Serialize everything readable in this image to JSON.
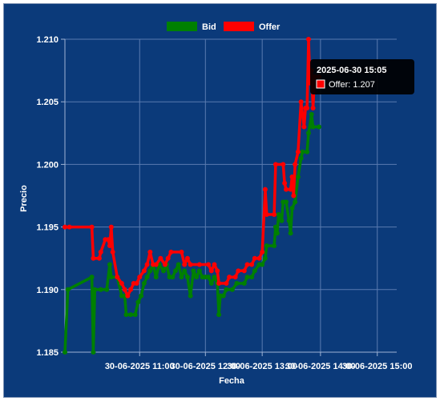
{
  "chart_data": {
    "type": "line",
    "title": "",
    "xlabel": "Fecha",
    "ylabel": "Precio",
    "ylim": [
      1.185,
      1.21
    ],
    "y_ticks": [
      "1.185",
      "1.190",
      "1.195",
      "1.200",
      "1.205",
      "1.210"
    ],
    "x_ticks": [
      "30-06-2025 11:00",
      "30-06-2025 12:00",
      "30-06-2025 13:00",
      "30-06-2025 14:00",
      "30-06-2025 15:00"
    ],
    "x_tick_times": [
      "10:50",
      "11:34",
      "12:12",
      "12:51",
      "13:29"
    ],
    "xlim": [
      "10:00",
      "13:42"
    ],
    "grid": true,
    "legend_position": "top",
    "series": [
      {
        "name": "Bid",
        "color": "#008000",
        "points": [
          [
            "10:00",
            1.185
          ],
          [
            "10:02",
            1.19
          ],
          [
            "10:18",
            1.191
          ],
          [
            "10:19",
            1.185
          ],
          [
            "10:20",
            1.19
          ],
          [
            "10:24",
            1.19
          ],
          [
            "10:28",
            1.19
          ],
          [
            "10:30",
            1.192
          ],
          [
            "10:31",
            1.191
          ],
          [
            "10:35",
            1.191
          ],
          [
            "10:38",
            1.1895
          ],
          [
            "10:40",
            1.1895
          ],
          [
            "10:41",
            1.188
          ],
          [
            "10:44",
            1.188
          ],
          [
            "10:47",
            1.188
          ],
          [
            "10:49",
            1.189
          ],
          [
            "10:51",
            1.1895
          ],
          [
            "10:53",
            1.1905
          ],
          [
            "10:55",
            1.191
          ],
          [
            "10:57",
            1.1915
          ],
          [
            "10:59",
            1.192
          ],
          [
            "11:01",
            1.191
          ],
          [
            "11:03",
            1.192
          ],
          [
            "11:06",
            1.1915
          ],
          [
            "11:08",
            1.192
          ],
          [
            "11:10",
            1.191
          ],
          [
            "11:12",
            1.191
          ],
          [
            "11:14",
            1.1915
          ],
          [
            "11:16",
            1.192
          ],
          [
            "11:18",
            1.191
          ],
          [
            "11:20",
            1.1915
          ],
          [
            "11:22",
            1.191
          ],
          [
            "11:24",
            1.1895
          ],
          [
            "11:26",
            1.1915
          ],
          [
            "11:28",
            1.191
          ],
          [
            "11:30",
            1.1915
          ],
          [
            "11:32",
            1.191
          ],
          [
            "11:34",
            1.191
          ],
          [
            "11:36",
            1.191
          ],
          [
            "11:38",
            1.1905
          ],
          [
            "11:40",
            1.191
          ],
          [
            "11:42",
            1.1905
          ],
          [
            "11:43",
            1.188
          ],
          [
            "11:44",
            1.1895
          ],
          [
            "11:46",
            1.1895
          ],
          [
            "11:48",
            1.19
          ],
          [
            "11:52",
            1.19
          ],
          [
            "11:55",
            1.1905
          ],
          [
            "12:00",
            1.1905
          ],
          [
            "12:02",
            1.191
          ],
          [
            "12:05",
            1.191
          ],
          [
            "12:07",
            1.1915
          ],
          [
            "12:10",
            1.192
          ],
          [
            "12:12",
            1.192
          ],
          [
            "12:14",
            1.1925
          ],
          [
            "12:15",
            1.1935
          ],
          [
            "12:20",
            1.1935
          ],
          [
            "12:21",
            1.195
          ],
          [
            "12:22",
            1.1945
          ],
          [
            "12:23",
            1.196
          ],
          [
            "12:25",
            1.1955
          ],
          [
            "12:26",
            1.197
          ],
          [
            "12:28",
            1.197
          ],
          [
            "12:30",
            1.1955
          ],
          [
            "12:31",
            1.1945
          ],
          [
            "12:32",
            1.1965
          ],
          [
            "12:34",
            1.197
          ],
          [
            "12:36",
            1.199
          ],
          [
            "12:38",
            1.2005
          ],
          [
            "12:39",
            1.201
          ],
          [
            "12:42",
            1.201
          ],
          [
            "12:43",
            1.2025
          ],
          [
            "12:45",
            1.204
          ],
          [
            "12:46",
            1.203
          ],
          [
            "12:50",
            1.203
          ]
        ]
      },
      {
        "name": "Offer",
        "color": "#ff0000",
        "points": [
          [
            "10:00",
            1.195
          ],
          [
            "10:03",
            1.195
          ],
          [
            "10:18",
            1.195
          ],
          [
            "10:19",
            1.1925
          ],
          [
            "10:23",
            1.1925
          ],
          [
            "10:24",
            1.193
          ],
          [
            "10:27",
            1.194
          ],
          [
            "10:29",
            1.194
          ],
          [
            "10:30",
            1.1935
          ],
          [
            "10:31",
            1.195
          ],
          [
            "10:32",
            1.193
          ],
          [
            "10:35",
            1.191
          ],
          [
            "10:38",
            1.1905
          ],
          [
            "10:40",
            1.19
          ],
          [
            "10:42",
            1.1895
          ],
          [
            "10:44",
            1.19
          ],
          [
            "10:46",
            1.1905
          ],
          [
            "10:48",
            1.1905
          ],
          [
            "10:50",
            1.191
          ],
          [
            "10:53",
            1.1915
          ],
          [
            "10:55",
            1.192
          ],
          [
            "10:57",
            1.193
          ],
          [
            "10:59",
            1.192
          ],
          [
            "11:01",
            1.192
          ],
          [
            "11:04",
            1.1925
          ],
          [
            "11:07",
            1.192
          ],
          [
            "11:09",
            1.1925
          ],
          [
            "11:11",
            1.193
          ],
          [
            "11:18",
            1.193
          ],
          [
            "11:20",
            1.192
          ],
          [
            "11:22",
            1.1925
          ],
          [
            "11:24",
            1.192
          ],
          [
            "11:30",
            1.192
          ],
          [
            "11:36",
            1.192
          ],
          [
            "11:38",
            1.1915
          ],
          [
            "11:40",
            1.192
          ],
          [
            "11:42",
            1.1915
          ],
          [
            "11:43",
            1.1905
          ],
          [
            "11:48",
            1.1905
          ],
          [
            "11:50",
            1.191
          ],
          [
            "11:54",
            1.191
          ],
          [
            "11:56",
            1.1915
          ],
          [
            "12:00",
            1.1915
          ],
          [
            "12:02",
            1.192
          ],
          [
            "12:05",
            1.192
          ],
          [
            "12:07",
            1.1925
          ],
          [
            "12:10",
            1.1925
          ],
          [
            "12:12",
            1.193
          ],
          [
            "12:14",
            1.198
          ],
          [
            "12:15",
            1.196
          ],
          [
            "12:20",
            1.196
          ],
          [
            "12:21",
            1.2
          ],
          [
            "12:26",
            1.2
          ],
          [
            "12:27",
            1.1985
          ],
          [
            "12:28",
            1.198
          ],
          [
            "12:31",
            1.198
          ],
          [
            "12:32",
            1.199
          ],
          [
            "12:33",
            1.1975
          ],
          [
            "12:34",
            1.2
          ],
          [
            "12:36",
            1.201
          ],
          [
            "12:38",
            1.205
          ],
          [
            "12:40",
            1.203
          ],
          [
            "12:41",
            1.2045
          ],
          [
            "12:42",
            1.2045
          ],
          [
            "12:43",
            1.21
          ],
          [
            "12:44",
            1.2065
          ],
          [
            "12:45",
            1.2075
          ],
          [
            "12:46",
            1.2045
          ],
          [
            "12:47",
            1.207
          ],
          [
            "12:50",
            1.207
          ]
        ]
      }
    ],
    "tooltip": {
      "title": "2025-06-30 15:05",
      "label": "Offer: 1.207"
    }
  }
}
